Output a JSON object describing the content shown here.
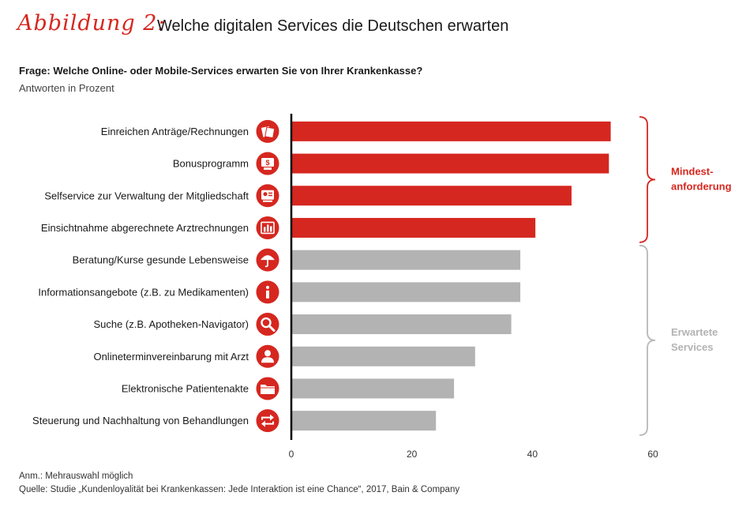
{
  "header": {
    "figure_label": "Abbildung 2:",
    "title": "Welche digitalen Services die Deutschen erwarten",
    "question": "Frage: Welche Online- oder Mobile-Services erwarten Sie von Ihrer Krankenkasse?",
    "subtitle": "Antworten in Prozent"
  },
  "footer": {
    "note": "Anm.: Mehrauswahl möglich",
    "source": "Quelle: Studie „Kundenloyalität bei Krankenkassen: Jede Interaktion ist eine Chance“, 2017, Bain & Company"
  },
  "colors": {
    "red": "#d5271f",
    "gray": "#b3b3b3",
    "brace_gray": "#b8b8b8",
    "axis": "#000000"
  },
  "chart_data": {
    "type": "bar",
    "orientation": "horizontal",
    "title": "Welche digitalen Services die Deutschen erwarten",
    "xlabel": "",
    "ylabel": "",
    "xlim": [
      0,
      60
    ],
    "xticks": [
      0,
      20,
      40,
      60
    ],
    "categories": [
      "Einreichen Anträge/Rechnungen",
      "Bonusprogramm",
      "Selfservice zur Verwaltung der Mitgliedschaft",
      "Einsichtnahme abgerechnete Arztrechnungen",
      "Beratung/Kurse gesunde Lebensweise",
      "Informationsangebote (z.B. zu Medikamenten)",
      "Suche (z.B. Apotheken-Navigator)",
      "Onlineterminvereinbarung mit Arzt",
      "Elektronische Patientenakte",
      "Steuerung und Nachhaltung von Behandlungen"
    ],
    "values": [
      53,
      52.7,
      46.5,
      40.5,
      38,
      38,
      36.5,
      30.5,
      27,
      24
    ],
    "icons": [
      "documents-icon",
      "bonus-icon",
      "member-icon",
      "invoice-chart-icon",
      "umbrella-icon",
      "info-icon",
      "search-icon",
      "person-icon",
      "folder-icon",
      "arrows-icon"
    ],
    "groups": [
      {
        "name": "Mindest-anforderung",
        "lines": [
          "Mindest-",
          "anforderung"
        ],
        "from": 0,
        "to": 3,
        "color": "#d5271f"
      },
      {
        "name": "Erwartete Services",
        "lines": [
          "Erwartete",
          "Services"
        ],
        "from": 4,
        "to": 9,
        "color": "#b3b3b3"
      }
    ]
  }
}
